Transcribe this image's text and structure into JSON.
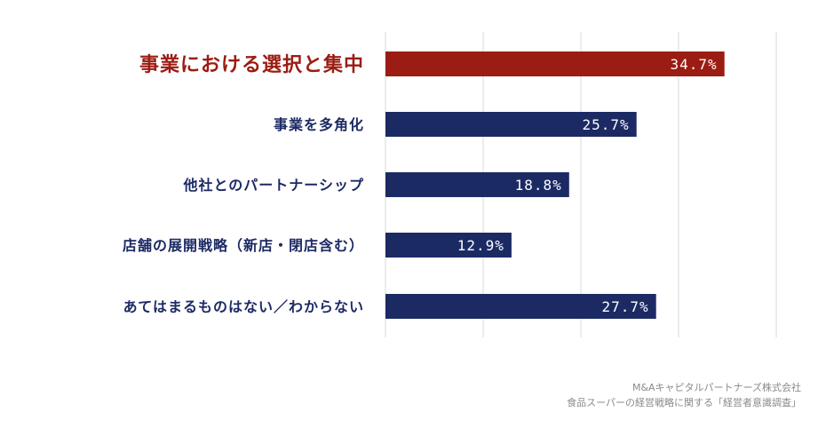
{
  "chart_data": {
    "type": "bar",
    "orientation": "horizontal",
    "categories": [
      "事業における選択と集中",
      "事業を多角化",
      "他社とのパートナーシップ",
      "店舗の展開戦略（新店・閉店含む）",
      "あてはまるものはない／わからない"
    ],
    "values": [
      34.7,
      25.7,
      18.8,
      12.9,
      27.7
    ],
    "value_labels": [
      "34.7%",
      "25.7%",
      "18.8%",
      "12.9%",
      "27.7%"
    ],
    "xlim": [
      0,
      40
    ],
    "grid": true,
    "highlight_index": 0,
    "colors": {
      "highlight": "#9b1c12",
      "default": "#1c2a64",
      "highlight_text": "#9b1c12",
      "default_text": "#1c2a64",
      "grid": "#d9d9d9"
    }
  },
  "source": {
    "line1": "M&Aキャピタルパートナーズ株式会社",
    "line2": "食品スーパーの経営戦略に関する「経営者意識調査」"
  }
}
